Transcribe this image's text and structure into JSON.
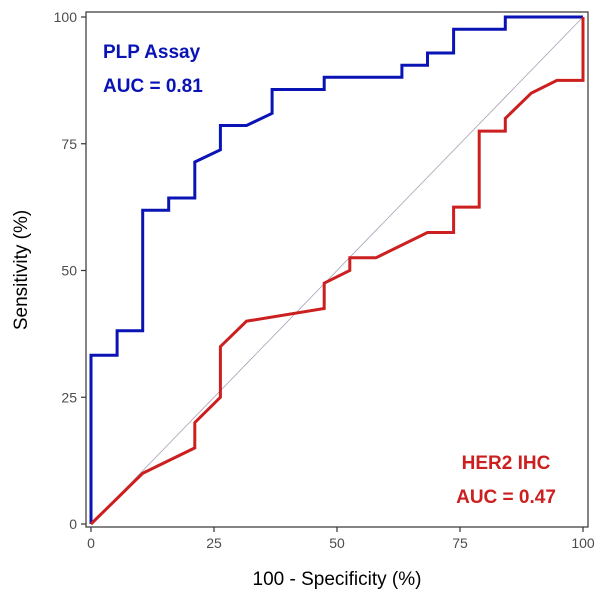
{
  "chart_data": {
    "type": "line",
    "xlabel": "100 - Specificity (%)",
    "ylabel": "Sensitivity (%)",
    "xlim": [
      0,
      100
    ],
    "ylim": [
      0,
      100
    ],
    "x_ticks": [
      0,
      25,
      50,
      75,
      100
    ],
    "y_ticks": [
      0,
      25,
      50,
      75,
      100
    ],
    "x_tick_labels": [
      "0",
      "25",
      "50",
      "75",
      "100"
    ],
    "y_tick_labels": [
      "0",
      "25",
      "50",
      "75",
      "100"
    ],
    "grid": false,
    "reference_line": {
      "from": [
        0,
        0
      ],
      "to": [
        100,
        100
      ],
      "color": "#a8a0b4"
    },
    "series": [
      {
        "color": "#0a14b4",
        "points": [
          [
            0,
            0
          ],
          [
            0,
            33.3
          ],
          [
            5.3,
            33.3
          ],
          [
            5.3,
            38.1
          ],
          [
            10.5,
            38.1
          ],
          [
            10.5,
            61.9
          ],
          [
            15.8,
            61.9
          ],
          [
            15.8,
            64.3
          ],
          [
            21.1,
            64.3
          ],
          [
            21.1,
            71.4
          ],
          [
            26.3,
            73.8
          ],
          [
            26.3,
            78.6
          ],
          [
            31.6,
            78.6
          ],
          [
            36.8,
            81
          ],
          [
            36.8,
            85.7
          ],
          [
            47.4,
            85.7
          ],
          [
            47.4,
            88.1
          ],
          [
            63.2,
            88.1
          ],
          [
            63.2,
            90.5
          ],
          [
            68.4,
            90.5
          ],
          [
            68.4,
            92.9
          ],
          [
            73.7,
            92.9
          ],
          [
            73.7,
            97.6
          ],
          [
            84.2,
            97.6
          ],
          [
            84.2,
            100
          ],
          [
            100,
            100
          ]
        ]
      },
      {
        "color": "#cc1f1f",
        "points": [
          [
            0,
            0
          ],
          [
            10.5,
            10
          ],
          [
            21.1,
            15
          ],
          [
            21.1,
            20
          ],
          [
            26.3,
            25
          ],
          [
            26.3,
            35
          ],
          [
            31.6,
            40
          ],
          [
            47.4,
            42.5
          ],
          [
            47.4,
            47.5
          ],
          [
            52.6,
            50
          ],
          [
            52.6,
            52.5
          ],
          [
            57.9,
            52.5
          ],
          [
            68.4,
            57.5
          ],
          [
            73.7,
            57.5
          ],
          [
            73.7,
            62.5
          ],
          [
            78.9,
            62.5
          ],
          [
            78.9,
            77.5
          ],
          [
            84.2,
            77.5
          ],
          [
            84.2,
            80
          ],
          [
            89.5,
            85
          ],
          [
            94.7,
            87.5
          ],
          [
            100,
            87.5
          ],
          [
            100,
            100
          ]
        ]
      }
    ],
    "annotations": [
      {
        "lines": [
          "PLP Assay",
          "AUC = 0.81"
        ],
        "color": "#0a14b4",
        "position": "top-left"
      },
      {
        "lines": [
          "HER2 IHC",
          "AUC = 0.47"
        ],
        "color": "#cc1f1f",
        "position": "bottom-right"
      }
    ]
  }
}
